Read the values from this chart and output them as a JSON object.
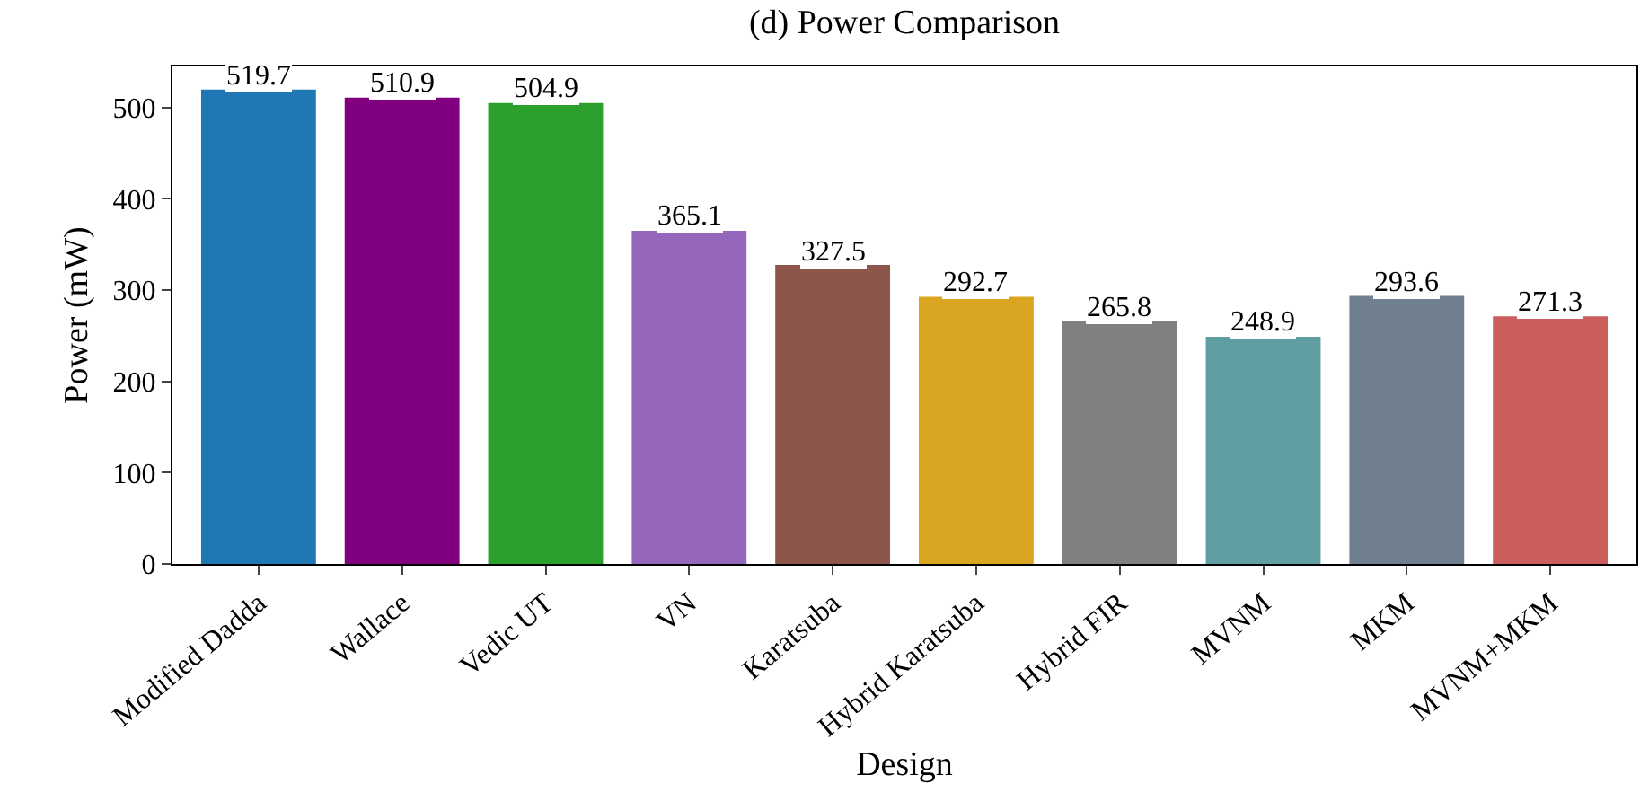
{
  "chart_data": {
    "type": "bar",
    "title": "(d) Power Comparison",
    "xlabel": "Design",
    "ylabel": "Power (mW)",
    "categories": [
      "Modified Dadda",
      "Wallace",
      "Vedic UT",
      "VN",
      "Karatsuba",
      "Hybrid Karatsuba",
      "Hybrid FIR",
      "MVNM",
      "MKM",
      "MVNM+MKM"
    ],
    "values": [
      519.7,
      510.9,
      504.9,
      365.1,
      327.5,
      292.7,
      265.8,
      248.9,
      293.6,
      271.3
    ],
    "colors": [
      "#1f77b4",
      "#800080",
      "#2ca02c",
      "#9467bd",
      "#8c564b",
      "#daa520",
      "#808080",
      "#5f9ea0",
      "#708090",
      "#cd5c5c"
    ],
    "ylim": [
      0,
      545
    ],
    "yticks": [
      0,
      100,
      200,
      300,
      400,
      500
    ],
    "data_labels": true
  }
}
